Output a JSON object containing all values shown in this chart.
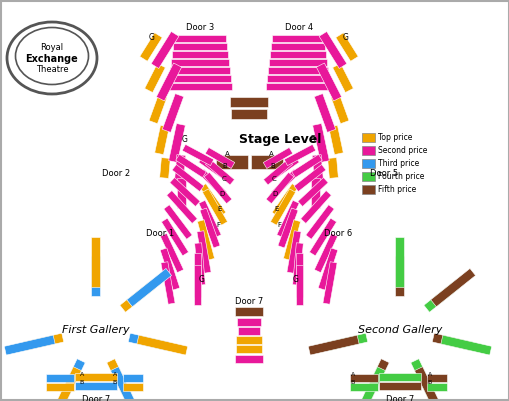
{
  "colors": {
    "top_price": "#F0A500",
    "second_price": "#E8189A",
    "third_price": "#3399EE",
    "fourth_price": "#44CC44",
    "fifth_price": "#7B4020",
    "background": "#FFFFFF"
  },
  "legend": {
    "labels": [
      "Top price",
      "Second price",
      "Third price",
      "Fourth price",
      "Fifth price"
    ],
    "colors": [
      "#F0A500",
      "#E8189A",
      "#3399EE",
      "#44CC44",
      "#7B4020"
    ]
  },
  "stage_level_label": "Stage Level",
  "first_gallery_label": "First Gallery",
  "second_gallery_label": "Second Gallery",
  "door_labels": {
    "door1": "Door 1",
    "door2": "Door 2",
    "door3": "Door 3",
    "door4": "Door 4",
    "door5": "Door 5",
    "door6": "Door 6",
    "door7a": "Door 7",
    "door7b": "Door 7",
    "door7c": "Door 7"
  }
}
